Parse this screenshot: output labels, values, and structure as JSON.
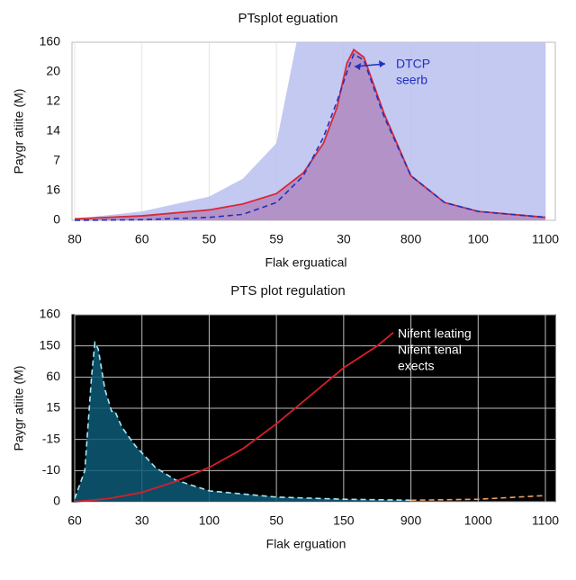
{
  "chart_data": [
    {
      "type": "line",
      "title": "PTsplot eguation",
      "xlabel": "Flak erguatical",
      "ylabel": "Paygr atiite (M)",
      "xlim": [
        0,
        7
      ],
      "ylim": [
        0,
        6
      ],
      "xticks": [
        {
          "value": 0,
          "label": "80"
        },
        {
          "value": 1,
          "label": "60"
        },
        {
          "value": 2,
          "label": "50"
        },
        {
          "value": 3,
          "label": "59"
        },
        {
          "value": 4,
          "label": "30"
        },
        {
          "value": 5,
          "label": "800"
        },
        {
          "value": 6,
          "label": "100"
        },
        {
          "value": 7,
          "label": "1100"
        }
      ],
      "yticks": [
        0,
        {
          "value": 1,
          "label": "16"
        },
        {
          "value": 2,
          "label": "7"
        },
        {
          "value": 3,
          "label": "14"
        },
        {
          "value": 4,
          "label": "12"
        },
        {
          "value": 5,
          "label": "20"
        },
        {
          "value": 6,
          "label": "160"
        }
      ],
      "grid": true,
      "background": "#ffffff",
      "annotation": [
        "DTCP",
        "seerb"
      ],
      "series": [
        {
          "color": "#8090e0",
          "fill": "#b8c0ee",
          "style": "none",
          "x": [
            0,
            1,
            2,
            2.5,
            3,
            3.3,
            3.7,
            4.3,
            5,
            6,
            7
          ],
          "values": [
            0.05,
            0.3,
            0.8,
            1.4,
            2.6,
            6,
            6,
            6,
            6,
            6,
            6
          ]
        },
        {
          "color": "#d8283a",
          "fill": "#b088c0",
          "style": "solid",
          "x": [
            0,
            1,
            2,
            2.5,
            3,
            3.4,
            3.7,
            3.9,
            4.05,
            4.15,
            4.3,
            4.6,
            5,
            5.5,
            6,
            7
          ],
          "values": [
            0.05,
            0.15,
            0.35,
            0.55,
            0.9,
            1.6,
            2.6,
            3.8,
            5.3,
            5.75,
            5.5,
            3.6,
            1.5,
            0.6,
            0.3,
            0.1
          ]
        },
        {
          "color": "#2030c0",
          "style": "dashed",
          "x": [
            0,
            1,
            2,
            2.5,
            3,
            3.4,
            3.7,
            3.9,
            4.05,
            4.15,
            4.3,
            4.6,
            5,
            5.5,
            6,
            7
          ],
          "values": [
            0,
            0.02,
            0.1,
            0.2,
            0.6,
            1.5,
            2.8,
            4,
            5,
            5.6,
            5.4,
            3.5,
            1.5,
            0.6,
            0.3,
            0.1
          ]
        }
      ]
    },
    {
      "type": "line",
      "title": "PTS plot regulation",
      "xlabel": "Flak erguation",
      "ylabel": "Paygr atiite (M)",
      "xlim": [
        0,
        7
      ],
      "ylim": [
        0,
        6
      ],
      "xticks": [
        {
          "value": 0,
          "label": "60"
        },
        {
          "value": 1,
          "label": "30"
        },
        {
          "value": 2,
          "label": "100"
        },
        {
          "value": 3,
          "label": "50"
        },
        {
          "value": 4,
          "label": "150"
        },
        {
          "value": 5,
          "label": "900"
        },
        {
          "value": 6,
          "label": "1000"
        },
        {
          "value": 7,
          "label": "1100"
        }
      ],
      "yticks": [
        0,
        {
          "value": 1,
          "label": "-10"
        },
        {
          "value": 2,
          "label": "-15"
        },
        {
          "value": 3,
          "label": "15"
        },
        {
          "value": 4,
          "label": "60"
        },
        {
          "value": 5,
          "label": "150"
        },
        {
          "value": 6,
          "label": "160"
        }
      ],
      "grid": true,
      "background": "#000000",
      "annotation": [
        "Nifent leating",
        "Nifent tenal",
        "exects"
      ],
      "series": [
        {
          "color": "#a8e8f0",
          "fill": "#0e5a78",
          "style": "dashed",
          "x": [
            0,
            0.15,
            0.25,
            0.3,
            0.35,
            0.45,
            0.55,
            0.6,
            0.7,
            0.9,
            1.2,
            1.5,
            2,
            3,
            4,
            5
          ],
          "values": [
            0.1,
            1,
            4,
            5.1,
            4.9,
            3.6,
            2.9,
            2.9,
            2.4,
            1.8,
            1.1,
            0.7,
            0.35,
            0.15,
            0.08,
            0.05
          ]
        },
        {
          "color": "#f0a060",
          "style": "dashed",
          "x": [
            5,
            6,
            7
          ],
          "values": [
            0.05,
            0.08,
            0.2
          ]
        },
        {
          "color": "#d81e28",
          "style": "solid",
          "x": [
            0,
            0.5,
            1,
            1.5,
            2,
            2.5,
            3,
            3.5,
            4,
            4.5,
            4.74
          ],
          "values": [
            0,
            0.1,
            0.3,
            0.65,
            1.1,
            1.7,
            2.5,
            3.4,
            4.3,
            5,
            5.43
          ]
        }
      ]
    }
  ]
}
